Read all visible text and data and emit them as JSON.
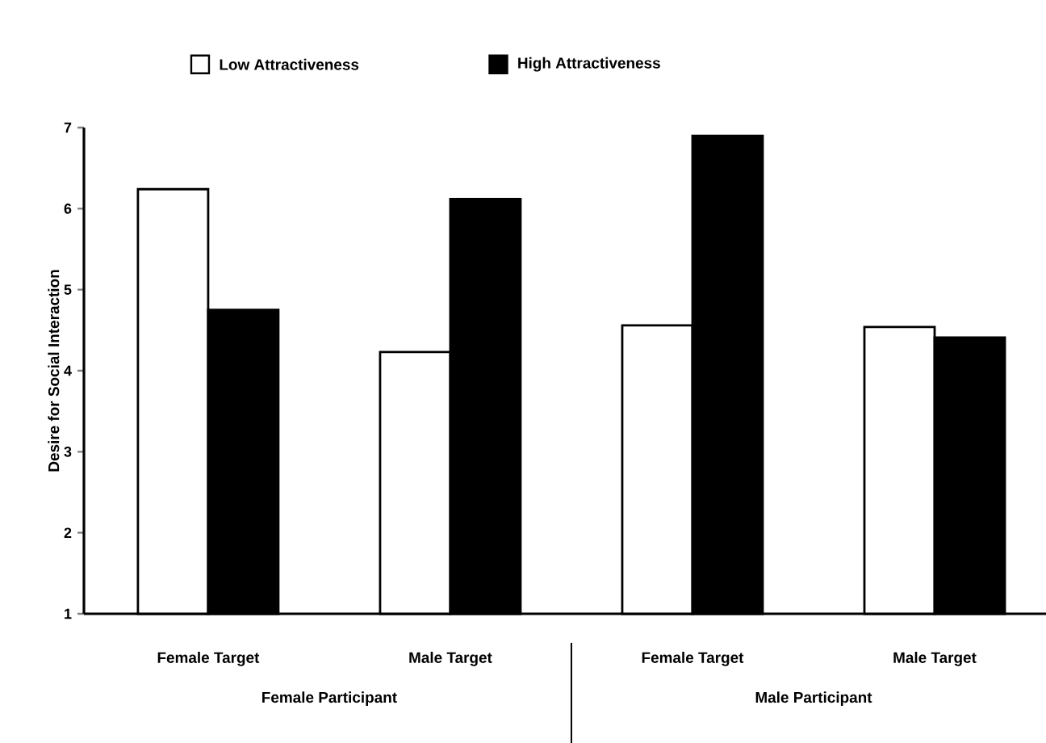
{
  "chart_data": {
    "type": "bar",
    "categories": [
      "Female Target",
      "Male Target",
      "Female Target",
      "Male Target"
    ],
    "series": [
      {
        "name": "Low Attractiveness",
        "color": "#ffffff",
        "values": [
          6.24,
          4.23,
          4.56,
          4.54
        ]
      },
      {
        "name": "High Attractiveness",
        "color": "#000000",
        "values": [
          4.75,
          6.12,
          6.9,
          4.41
        ]
      }
    ],
    "ylabel": "Desire for Social Interaction",
    "ylim": [
      1,
      7
    ],
    "yticks": [
      1,
      2,
      3,
      4,
      5,
      6,
      7
    ],
    "annotations": [
      "Female Participant",
      "Male Participant"
    ],
    "legend": "top",
    "grid": false
  }
}
